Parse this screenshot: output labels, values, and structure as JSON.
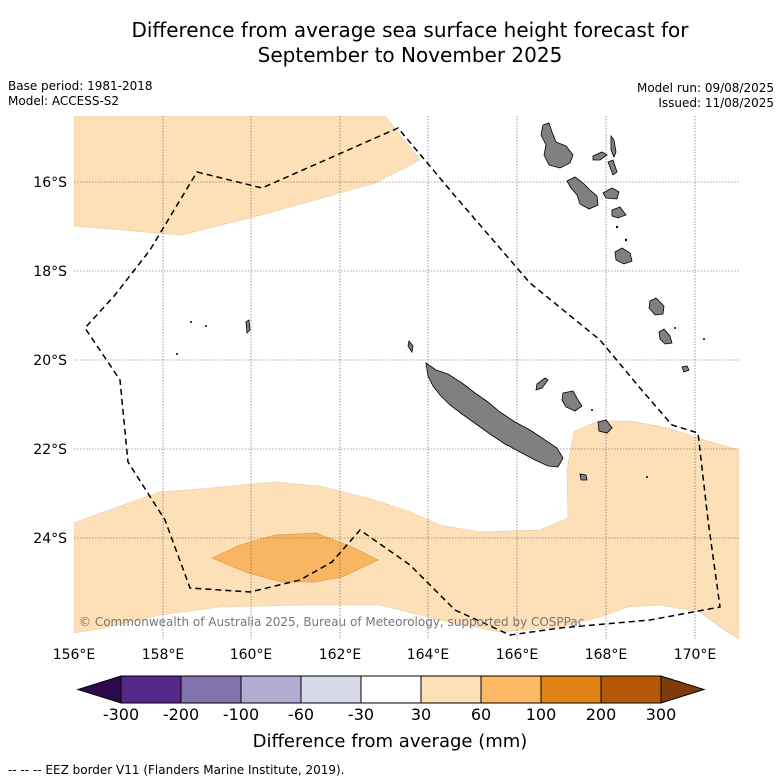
{
  "title_line1": "Difference from average sea surface height forecast for",
  "title_line2": "September to November 2025",
  "base_period": "Base period: 1981-2018",
  "model": "Model: ACCESS-S2",
  "model_run": "Model run: 09/08/2025",
  "issued": "Issued: 11/08/2025",
  "map": {
    "lon_range": [
      156,
      171
    ],
    "lat_range": [
      -26.2,
      -14.4
    ],
    "lon_ticks": [
      "156°E",
      "158°E",
      "160°E",
      "162°E",
      "164°E",
      "166°E",
      "168°E",
      "170°E"
    ],
    "lat_ticks": [
      "16°S",
      "18°S",
      "20°S",
      "22°S",
      "24°S"
    ],
    "grid": true,
    "land_color": "#808080",
    "credit": "© Commonwealth of Australia 2025, Bureau of Meteorology, supported by COSPPac"
  },
  "colorbar": {
    "title": "Difference from average (mm)",
    "labels": [
      "-300",
      "-200",
      "-100",
      "-60",
      "-30",
      "30",
      "60",
      "100",
      "200",
      "300"
    ],
    "colors": [
      "#2d0a4e",
      "#542788",
      "#8073ac",
      "#b2abd2",
      "#d8daeb",
      "#ffffff",
      "#fee0b6",
      "#fdb863",
      "#e08214",
      "#b35806",
      "#7f3b08"
    ]
  },
  "footnote": "-- -- -- EEZ border V11 (Flanders Marine Institute, 2019)."
}
